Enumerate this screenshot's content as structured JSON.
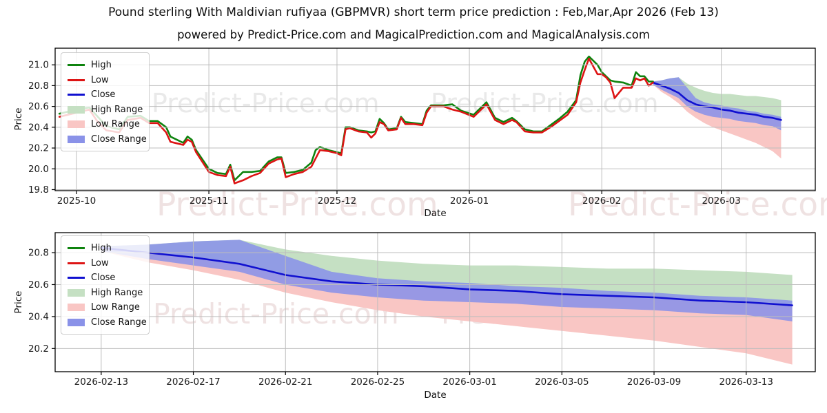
{
  "header": {
    "title": "Pound sterling With Maldivian rufiyaa (GBPMVR) short term price prediction : Feb,Mar,Apr 2026 (Feb 13)",
    "subtitle": "powered by Predict-Price.com and MagicalPrediction.com and MagicalAnalysis.com"
  },
  "axis": {
    "x_label": "Date",
    "y_label": "Price"
  },
  "watermark": {
    "text": "Predict-Price.com",
    "gray": "#e9e9e9",
    "pink": "#efe2e2"
  },
  "colors": {
    "high": "#0e830e",
    "low": "#dd1414",
    "close": "#1010d0",
    "high_range": "#c5e0c3",
    "low_range": "#f9c6c4",
    "close_range": "#8a92e8",
    "grid": "#bdbdbd",
    "spine": "#000000",
    "tick_text": "#1a1a1a"
  },
  "legend": {
    "items": [
      "High",
      "Low",
      "Close",
      "High Range",
      "Low Range",
      "Close Range"
    ]
  },
  "chart_data": [
    {
      "type": "line",
      "title": "GBPMVR daily history with short-term forecast fan",
      "xlabel": "Date",
      "ylabel": "Price",
      "xlim": [
        "2025-09-26",
        "2026-03-23"
      ],
      "ylim": [
        19.79,
        21.16
      ],
      "grid": true,
      "legend_position": "upper left",
      "xticks": [
        {
          "date": "2025-10-01",
          "label": "2025-10"
        },
        {
          "date": "2025-11-01",
          "label": "2025-11"
        },
        {
          "date": "2025-12-01",
          "label": "2025-12"
        },
        {
          "date": "2026-01-01",
          "label": "2026-01"
        },
        {
          "date": "2026-02-01",
          "label": "2026-02"
        },
        {
          "date": "2026-03-01",
          "label": "2026-03"
        }
      ],
      "yticks": [
        {
          "v": 19.8,
          "label": "19.8"
        },
        {
          "v": 20.0,
          "label": "20.0"
        },
        {
          "v": 20.2,
          "label": "20.2"
        },
        {
          "v": 20.4,
          "label": "20.4"
        },
        {
          "v": 20.6,
          "label": "20.6"
        },
        {
          "v": 20.8,
          "label": "20.8"
        },
        {
          "v": 21.0,
          "label": "21.0"
        }
      ],
      "series": {
        "history": {
          "dates": [
            "2025-09-27",
            "2025-09-29",
            "2025-10-01",
            "2025-10-04",
            "2025-10-06",
            "2025-10-08",
            "2025-10-11",
            "2025-10-13",
            "2025-10-16",
            "2025-10-18",
            "2025-10-20",
            "2025-10-22",
            "2025-10-23",
            "2025-10-26",
            "2025-10-27",
            "2025-10-28",
            "2025-10-29",
            "2025-11-01",
            "2025-11-03",
            "2025-11-05",
            "2025-11-06",
            "2025-11-07",
            "2025-11-09",
            "2025-11-11",
            "2025-11-13",
            "2025-11-15",
            "2025-11-17",
            "2025-11-18",
            "2025-11-19",
            "2025-11-21",
            "2025-11-23",
            "2025-11-25",
            "2025-11-26",
            "2025-11-27",
            "2025-11-29",
            "2025-12-01",
            "2025-12-02",
            "2025-12-03",
            "2025-12-04",
            "2025-12-06",
            "2025-12-08",
            "2025-12-09",
            "2025-12-10",
            "2025-12-11",
            "2025-12-12",
            "2025-12-13",
            "2025-12-15",
            "2025-12-16",
            "2025-12-17",
            "2025-12-19",
            "2025-12-21",
            "2025-12-22",
            "2025-12-23",
            "2025-12-26",
            "2025-12-28",
            "2025-12-30",
            "2026-01-02",
            "2026-01-05",
            "2026-01-07",
            "2026-01-09",
            "2026-01-11",
            "2026-01-12",
            "2026-01-14",
            "2026-01-16",
            "2026-01-18",
            "2026-01-20",
            "2026-01-22",
            "2026-01-24",
            "2026-01-26",
            "2026-01-27",
            "2026-01-28",
            "2026-01-29",
            "2026-01-31",
            "2026-02-01",
            "2026-02-02",
            "2026-02-03",
            "2026-02-04",
            "2026-02-06",
            "2026-02-08",
            "2026-02-09",
            "2026-02-10",
            "2026-02-11",
            "2026-02-12",
            "2026-02-13"
          ],
          "low": [
            20.5,
            20.52,
            20.54,
            20.57,
            20.45,
            20.37,
            20.35,
            20.47,
            20.49,
            20.44,
            20.44,
            20.35,
            20.26,
            20.23,
            20.28,
            20.26,
            20.16,
            19.97,
            19.94,
            19.93,
            20.02,
            19.86,
            19.89,
            19.93,
            19.96,
            20.05,
            20.09,
            20.1,
            19.92,
            19.95,
            19.97,
            20.02,
            20.1,
            20.18,
            20.17,
            20.15,
            20.13,
            20.38,
            20.39,
            20.36,
            20.35,
            20.3,
            20.34,
            20.45,
            20.43,
            20.37,
            20.38,
            20.49,
            20.43,
            20.43,
            20.42,
            20.54,
            20.6,
            20.6,
            20.57,
            20.55,
            20.5,
            20.62,
            20.47,
            20.43,
            20.47,
            20.45,
            20.36,
            20.35,
            20.35,
            20.4,
            20.46,
            20.52,
            20.64,
            20.83,
            20.95,
            21.06,
            20.91,
            20.91,
            20.88,
            20.83,
            20.68,
            20.78,
            20.78,
            20.87,
            20.85,
            20.87,
            20.8,
            20.83
          ],
          "high": [
            20.53,
            20.55,
            20.57,
            20.59,
            20.5,
            20.41,
            20.38,
            20.5,
            20.51,
            20.46,
            20.46,
            20.4,
            20.31,
            20.25,
            20.31,
            20.28,
            20.18,
            20.0,
            19.96,
            19.95,
            20.04,
            19.89,
            19.97,
            19.97,
            19.98,
            20.07,
            20.11,
            20.11,
            19.96,
            19.97,
            19.99,
            20.06,
            20.18,
            20.21,
            20.18,
            20.16,
            20.15,
            20.4,
            20.4,
            20.37,
            20.36,
            20.35,
            20.36,
            20.48,
            20.44,
            20.38,
            20.39,
            20.5,
            20.45,
            20.44,
            20.43,
            20.56,
            20.61,
            20.61,
            20.62,
            20.56,
            20.52,
            20.64,
            20.49,
            20.45,
            20.49,
            20.46,
            20.38,
            20.36,
            20.36,
            20.42,
            20.48,
            20.55,
            20.66,
            20.9,
            21.03,
            21.08,
            21.0,
            20.93,
            20.89,
            20.85,
            20.84,
            20.83,
            20.8,
            20.93,
            20.89,
            20.89,
            20.84,
            20.84
          ]
        },
        "forecast": {
          "dates": [
            "2026-02-13",
            "2026-02-15",
            "2026-02-17",
            "2026-02-19",
            "2026-02-21",
            "2026-02-23",
            "2026-02-25",
            "2026-02-27",
            "2026-03-01",
            "2026-03-03",
            "2026-03-05",
            "2026-03-07",
            "2026-03-09",
            "2026-03-11",
            "2026-03-13",
            "2026-03-15"
          ],
          "close": [
            20.83,
            20.8,
            20.77,
            20.73,
            20.66,
            20.62,
            20.6,
            20.59,
            20.57,
            20.56,
            20.54,
            20.53,
            20.52,
            20.5,
            20.49,
            20.47
          ],
          "close_upper": [
            20.84,
            20.85,
            20.87,
            20.88,
            20.78,
            20.68,
            20.64,
            20.62,
            20.61,
            20.59,
            20.58,
            20.56,
            20.55,
            20.53,
            20.52,
            20.5
          ],
          "close_lower": [
            20.81,
            20.76,
            20.72,
            20.68,
            20.6,
            20.55,
            20.52,
            20.5,
            20.49,
            20.48,
            20.46,
            20.45,
            20.44,
            20.42,
            20.41,
            20.37
          ],
          "high_upper": [
            20.84,
            20.85,
            20.87,
            20.88,
            20.82,
            20.78,
            20.75,
            20.73,
            20.72,
            20.72,
            20.71,
            20.7,
            20.7,
            20.69,
            20.68,
            20.66
          ],
          "low_lower": [
            20.81,
            20.74,
            20.69,
            20.63,
            20.55,
            20.49,
            20.44,
            20.4,
            20.37,
            20.34,
            20.31,
            20.28,
            20.25,
            20.21,
            20.17,
            20.1
          ]
        }
      }
    },
    {
      "type": "line",
      "title": "GBPMVR forecast detail (Feb 13 - Mar 15 2026)",
      "xlabel": "Date",
      "ylabel": "Price",
      "xlim": [
        "2026-02-11",
        "2026-03-16"
      ],
      "ylim": [
        20.055,
        20.925
      ],
      "grid": true,
      "legend_position": "upper left",
      "xticks": [
        {
          "date": "2026-02-13",
          "label": "2026-02-13"
        },
        {
          "date": "2026-02-17",
          "label": "2026-02-17"
        },
        {
          "date": "2026-02-21",
          "label": "2026-02-21"
        },
        {
          "date": "2026-02-25",
          "label": "2026-02-25"
        },
        {
          "date": "2026-03-01",
          "label": "2026-03-01"
        },
        {
          "date": "2026-03-05",
          "label": "2026-03-05"
        },
        {
          "date": "2026-03-09",
          "label": "2026-03-09"
        },
        {
          "date": "2026-03-13",
          "label": "2026-03-13"
        }
      ],
      "yticks": [
        {
          "v": 20.2,
          "label": "20.2"
        },
        {
          "v": 20.4,
          "label": "20.4"
        },
        {
          "v": 20.6,
          "label": "20.6"
        },
        {
          "v": 20.8,
          "label": "20.8"
        }
      ],
      "series": {
        "forecast": {
          "dates": [
            "2026-02-13",
            "2026-02-15",
            "2026-02-17",
            "2026-02-19",
            "2026-02-21",
            "2026-02-23",
            "2026-02-25",
            "2026-02-27",
            "2026-03-01",
            "2026-03-03",
            "2026-03-05",
            "2026-03-07",
            "2026-03-09",
            "2026-03-11",
            "2026-03-13",
            "2026-03-15"
          ],
          "close": [
            20.83,
            20.8,
            20.77,
            20.73,
            20.66,
            20.62,
            20.6,
            20.59,
            20.57,
            20.56,
            20.54,
            20.53,
            20.52,
            20.5,
            20.49,
            20.47
          ],
          "close_upper": [
            20.84,
            20.85,
            20.87,
            20.88,
            20.78,
            20.68,
            20.64,
            20.62,
            20.61,
            20.59,
            20.58,
            20.56,
            20.55,
            20.53,
            20.52,
            20.5
          ],
          "close_lower": [
            20.81,
            20.76,
            20.72,
            20.68,
            20.6,
            20.55,
            20.52,
            20.5,
            20.49,
            20.48,
            20.46,
            20.45,
            20.44,
            20.42,
            20.41,
            20.37
          ],
          "high_upper": [
            20.84,
            20.85,
            20.87,
            20.88,
            20.82,
            20.78,
            20.75,
            20.73,
            20.72,
            20.72,
            20.71,
            20.7,
            20.7,
            20.69,
            20.68,
            20.66
          ],
          "low_lower": [
            20.81,
            20.74,
            20.69,
            20.63,
            20.55,
            20.49,
            20.44,
            20.4,
            20.37,
            20.34,
            20.31,
            20.28,
            20.25,
            20.21,
            20.17,
            20.1
          ]
        }
      }
    }
  ]
}
